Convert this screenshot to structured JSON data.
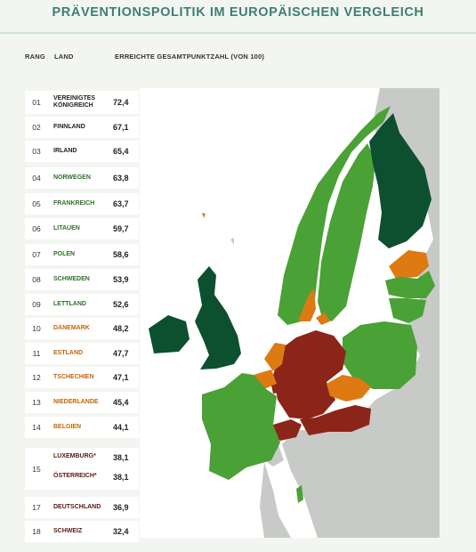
{
  "title": "PRÄVENTIONSPOLITIK IM EUROPÄISCHEN VERGLEICH",
  "columns": {
    "rank": "RANG",
    "country": "LAND",
    "score": "ERREICHTE GESAMTPUNKTZAHL (VON 100)"
  },
  "colors": {
    "dark_green": "#0c5030",
    "green": "#4aa135",
    "orange": "#de7a12",
    "red": "#8c2519",
    "gray": "#c8cac8"
  },
  "rows": [
    {
      "rank": "01",
      "country": "VEREINIGTES KÖNIGREICH",
      "score": "72,4",
      "category": "dark_green"
    },
    {
      "rank": "02",
      "country": "FINNLAND",
      "score": "67,1",
      "category": "dark_green"
    },
    {
      "rank": "03",
      "country": "IRLAND",
      "score": "65,4",
      "category": "dark_green"
    },
    {
      "rank": "04",
      "country": "NORWEGEN",
      "score": "63,8",
      "category": "green"
    },
    {
      "rank": "05",
      "country": "FRANKREICH",
      "score": "63,7",
      "category": "green"
    },
    {
      "rank": "06",
      "country": "LITAUEN",
      "score": "59,7",
      "category": "green"
    },
    {
      "rank": "07",
      "country": "POLEN",
      "score": "58,6",
      "category": "green"
    },
    {
      "rank": "08",
      "country": "SCHWEDEN",
      "score": "53,9",
      "category": "green"
    },
    {
      "rank": "09",
      "country": "LETTLAND",
      "score": "52,6",
      "category": "green"
    },
    {
      "rank": "10",
      "country": "DÄNEMARK",
      "score": "48,2",
      "category": "orange"
    },
    {
      "rank": "11",
      "country": "ESTLAND",
      "score": "47,7",
      "category": "orange"
    },
    {
      "rank": "12",
      "country": "TSCHECHIEN",
      "score": "47,1",
      "category": "orange"
    },
    {
      "rank": "13",
      "country": "NIEDERLANDE",
      "score": "45,4",
      "category": "orange"
    },
    {
      "rank": "14",
      "country": "BELGIEN",
      "score": "44,1",
      "category": "orange"
    },
    {
      "rank": "15",
      "countries": [
        {
          "country": "LUXEMBURG*",
          "score": "38,1",
          "category": "red"
        },
        {
          "country": "ÖSTERREICH*",
          "score": "38,1",
          "category": "red"
        }
      ]
    },
    {
      "rank": "17",
      "country": "DEUTSCHLAND",
      "score": "36,9",
      "category": "red"
    },
    {
      "rank": "18",
      "country": "SCHWEIZ",
      "score": "32,4",
      "category": "red"
    }
  ]
}
